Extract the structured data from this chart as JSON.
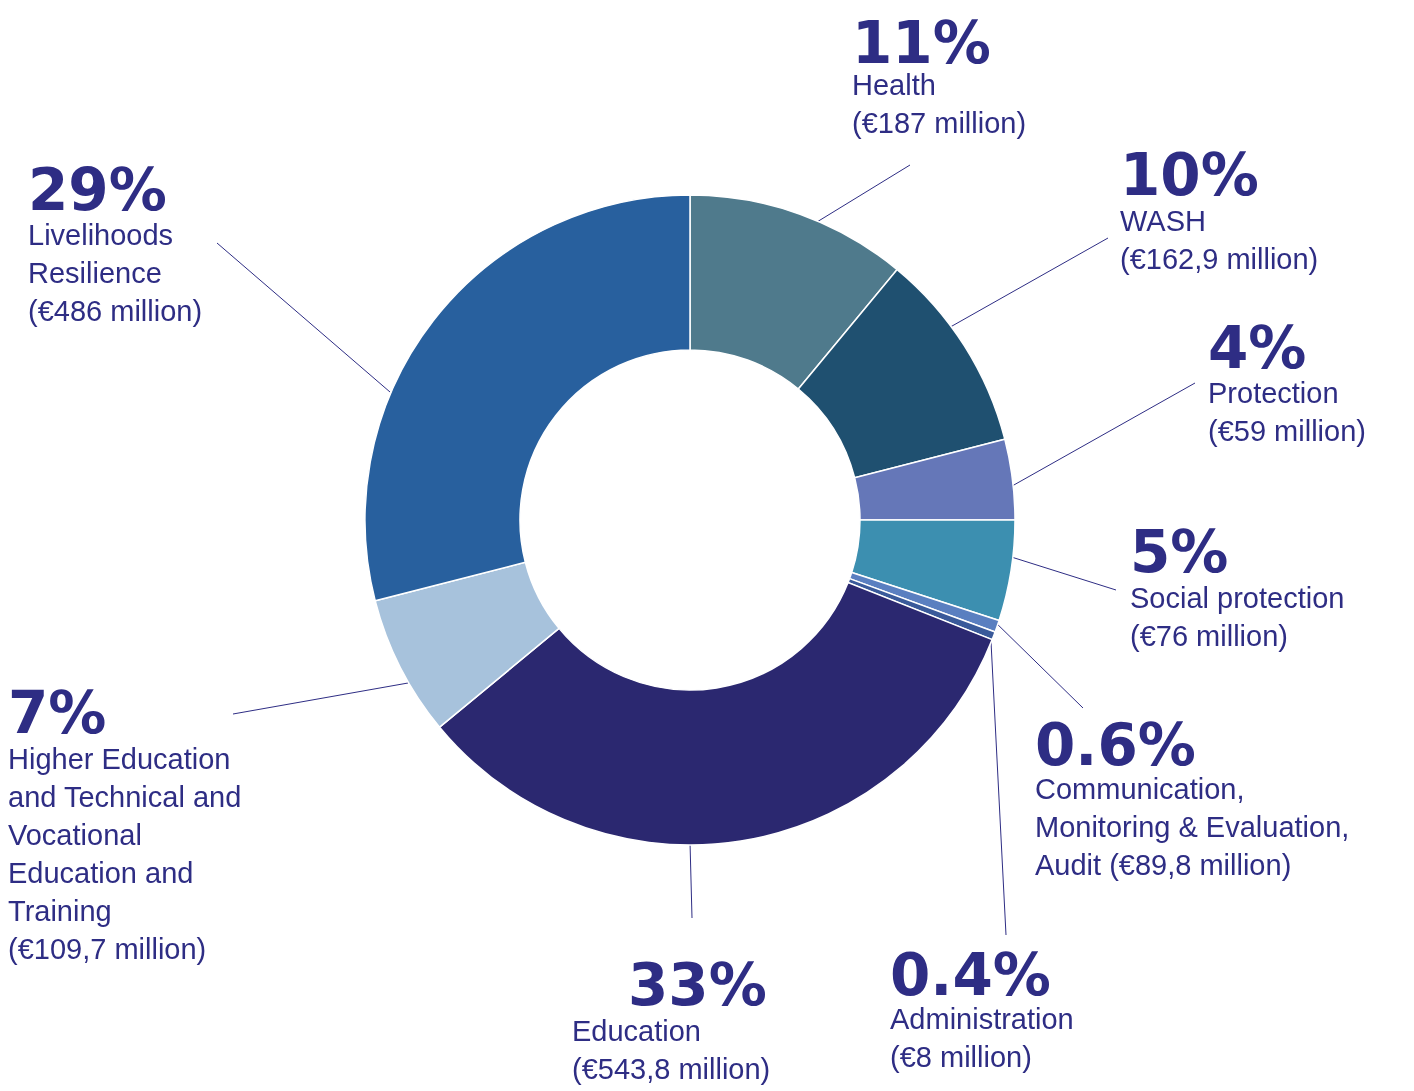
{
  "chart_data": {
    "type": "donut",
    "categories": [
      "Health\n(€187 million)",
      "WASH\n(€162,9 million)",
      "Protection\n(€59 million)",
      "Social protection\n(€76 million)",
      "Communication,\nMonitoring & Evaluation,\nAudit (€89,8 million)",
      "Administration\n(€8 million)",
      "Education\n(€543,8 million)",
      "Higher Education\nand Technical and\nVocational\nEducation and\nTraining\n(€109,7 million)",
      "Livelihoods\nResilience\n(€486 million)"
    ],
    "values": [
      11,
      10,
      4,
      5,
      0.6,
      0.4,
      33,
      7,
      29
    ],
    "value_labels": [
      "11%",
      "10%",
      "4%",
      "5%",
      "0.6%",
      "0.4%",
      "33%",
      "7%",
      "29%"
    ],
    "colors": [
      "#4f7a8c",
      "#1f5070",
      "#6577b8",
      "#3c8fb0",
      "#5a7fc0",
      "#3a5a9a",
      "#2b2870",
      "#a7c2dc",
      "#28609e"
    ]
  }
}
